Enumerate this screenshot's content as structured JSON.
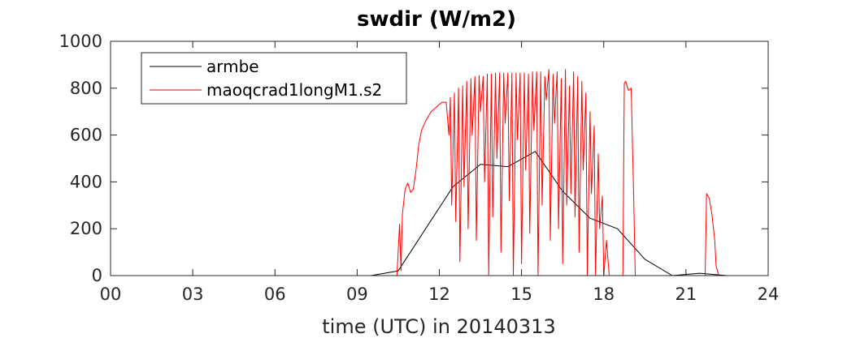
{
  "chart_data": {
    "type": "line",
    "title": "swdir  (W/m2)",
    "xlabel": "time (UTC) in 20140313",
    "ylabel": "",
    "xlim": [
      0,
      24
    ],
    "ylim": [
      0,
      1000
    ],
    "x_ticks": [
      0,
      3,
      6,
      9,
      12,
      15,
      18,
      21,
      24
    ],
    "x_tick_labels": [
      "00",
      "03",
      "06",
      "09",
      "12",
      "15",
      "18",
      "21",
      "24"
    ],
    "y_ticks": [
      0,
      200,
      400,
      600,
      800,
      1000
    ],
    "y_tick_labels": [
      "0",
      "200",
      "400",
      "600",
      "800",
      "1000"
    ],
    "grid": false,
    "legend_position": "top-left",
    "series": [
      {
        "name": "armbe",
        "color": "#000000",
        "x": [
          0,
          9.5,
          10.5,
          11.5,
          12.5,
          13.5,
          14.5,
          15.5,
          16.5,
          17.5,
          18.5,
          19.5,
          20.5,
          21.5,
          22.5,
          24
        ],
        "y": [
          0,
          0,
          20,
          200,
          380,
          475,
          465,
          530,
          360,
          245,
          200,
          70,
          0,
          10,
          0,
          0
        ]
      },
      {
        "name": "maoqcrad1longM1.s2",
        "color": "#ff0000",
        "x": [
          0,
          10.45,
          10.55,
          10.6,
          10.65,
          10.75,
          10.85,
          10.95,
          11.05,
          11.15,
          11.25,
          11.35,
          11.5,
          11.7,
          11.9,
          12.1,
          12.25,
          12.35,
          12.4,
          12.45,
          12.55,
          12.6,
          12.7,
          12.75,
          12.85,
          12.9,
          13.0,
          13.05,
          13.15,
          13.2,
          13.3,
          13.35,
          13.45,
          13.5,
          13.6,
          13.65,
          13.75,
          13.8,
          13.9,
          13.95,
          14.05,
          14.1,
          14.2,
          14.25,
          14.35,
          14.4,
          14.5,
          14.55,
          14.65,
          14.7,
          14.8,
          14.85,
          14.95,
          15.0,
          15.1,
          15.15,
          15.25,
          15.3,
          15.4,
          15.45,
          15.55,
          15.6,
          15.7,
          15.75,
          15.85,
          15.9,
          16.0,
          16.05,
          16.15,
          16.2,
          16.3,
          16.35,
          16.45,
          16.5,
          16.6,
          16.65,
          16.75,
          16.8,
          16.9,
          16.95,
          17.05,
          17.1,
          17.2,
          17.25,
          17.35,
          17.4,
          17.5,
          17.55,
          17.65,
          17.7,
          17.8,
          17.85,
          17.95,
          18.0,
          18.1,
          18.2,
          18.5,
          18.7,
          18.75,
          18.8,
          18.9,
          19.0,
          19.1,
          19.15,
          19.25,
          21.7,
          21.75,
          21.85,
          21.95,
          22.05,
          22.1,
          22.2,
          24
        ],
        "y": [
          0,
          0,
          220,
          20,
          260,
          370,
          395,
          355,
          370,
          450,
          560,
          620,
          660,
          700,
          720,
          740,
          740,
          600,
          760,
          300,
          780,
          230,
          800,
          60,
          810,
          380,
          830,
          200,
          840,
          600,
          850,
          150,
          855,
          700,
          850,
          400,
          860,
          0,
          860,
          250,
          865,
          500,
          865,
          100,
          865,
          650,
          865,
          320,
          865,
          0,
          865,
          580,
          865,
          50,
          865,
          450,
          860,
          180,
          870,
          620,
          870,
          0,
          870,
          300,
          850,
          750,
          880,
          150,
          860,
          650,
          870,
          200,
          840,
          50,
          880,
          300,
          810,
          350,
          870,
          250,
          850,
          100,
          830,
          450,
          780,
          0,
          700,
          350,
          640,
          0,
          520,
          200,
          340,
          0,
          150,
          0,
          0,
          0,
          820,
          830,
          790,
          800,
          300,
          0,
          0,
          0,
          350,
          330,
          260,
          150,
          40,
          0,
          0
        ]
      }
    ]
  }
}
